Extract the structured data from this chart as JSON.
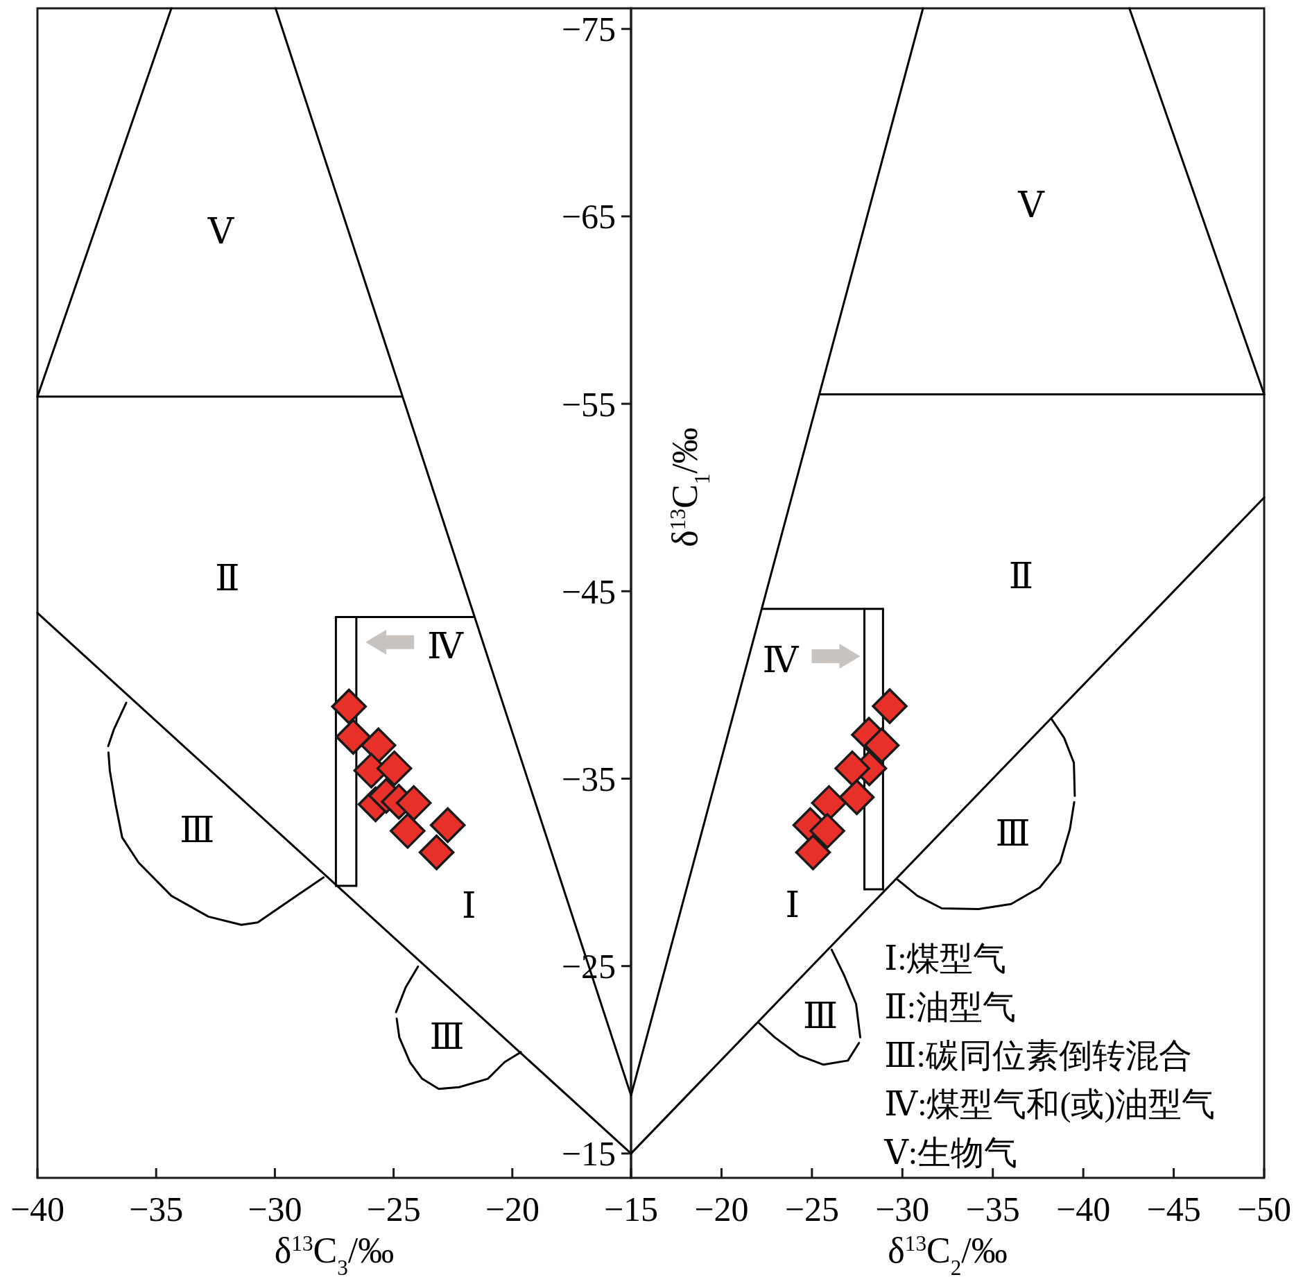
{
  "chart_data": [
    {
      "type": "scatter",
      "xlabel": "δ$^{13}$C$_{3}$/‰",
      "xlim": [
        -40,
        -15
      ],
      "xticks": [
        {
          "value": -40,
          "label": "−40"
        },
        {
          "value": -35,
          "label": "−35"
        },
        {
          "value": -30,
          "label": "−30"
        },
        {
          "value": -25,
          "label": "−25"
        },
        {
          "value": -20,
          "label": "−20"
        },
        {
          "value": -15,
          "label": null
        }
      ],
      "ylim": [
        -13.7,
        -76.1
      ],
      "yticks": [
        {
          "value": -75,
          "label": "−75"
        },
        {
          "value": -65,
          "label": "−65"
        },
        {
          "value": -55,
          "label": "−55"
        },
        {
          "value": -45,
          "label": "−45"
        },
        {
          "value": -35,
          "label": "−35"
        },
        {
          "value": -25,
          "label": "−25"
        },
        {
          "value": -15,
          "label": "−15"
        }
      ],
      "series": [
        {
          "type": "line",
          "color": "#000000",
          "x": [
            -34.36,
            -40
          ],
          "values": [
            -76.1,
            -55.38
          ]
        },
        {
          "type": "line",
          "color": "#000000",
          "x": [
            -29.97,
            -15
          ],
          "values": [
            -76.1,
            -18.1
          ]
        },
        {
          "type": "line",
          "color": "#000000",
          "x": [
            -40,
            -24.66
          ],
          "values": [
            -55.38,
            -55.38
          ]
        },
        {
          "type": "line",
          "color": "#000000",
          "x": [
            -40,
            -15
          ],
          "values": [
            -43.84,
            -15
          ]
        },
        {
          "type": "line",
          "color": "#000000",
          "x": [
            -27.43,
            -21.65
          ],
          "values": [
            -43.62,
            -43.62
          ]
        },
        {
          "type": "line",
          "color": "#000000",
          "x": [
            -27.43,
            -26.57
          ],
          "values": [
            -29.28,
            -29.28
          ]
        },
        {
          "type": "line",
          "color": "#000000",
          "x": [
            -27.43,
            -27.43
          ],
          "values": [
            -43.62,
            -29.28
          ]
        },
        {
          "type": "line",
          "color": "#000000",
          "x": [
            -26.57,
            -26.57
          ],
          "values": [
            -43.62,
            -29.28
          ]
        },
        {
          "type": "line",
          "color": "#000000",
          "x": [
            -36.26,
            -36.78,
            -37.02
          ],
          "values": [
            -39.05,
            -37.63,
            -36.74
          ]
        },
        {
          "type": "line",
          "color": "#000000",
          "x": [
            -37.01,
            -36.95,
            -36.71,
            -36.43,
            -35.74,
            -34.36,
            -32.8,
            -31.41,
            -30.72,
            -29.34,
            -27.95
          ],
          "values": [
            -36.4,
            -35.41,
            -33.63,
            -31.86,
            -30.52,
            -28.75,
            -27.64,
            -27.2,
            -27.33,
            -28.53,
            -29.73
          ]
        },
        {
          "type": "line",
          "color": "#000000",
          "x": [
            -23.97,
            -24.49,
            -24.9
          ],
          "values": [
            -24.98,
            -23.87,
            -22.54
          ]
        },
        {
          "type": "line",
          "color": "#000000",
          "x": [
            -24.87,
            -24.76,
            -24.31,
            -23.8,
            -23.1,
            -22.24,
            -21.03,
            -20.33,
            -19.64
          ],
          "values": [
            -22.2,
            -21.2,
            -19.87,
            -18.99,
            -18.45,
            -18.54,
            -18.99,
            -19.87,
            -20.41
          ]
        },
        {
          "type": "scatter",
          "marker": "diamond",
          "color": "#e8302a",
          "x": [
            -26.88,
            -26.7,
            -25.64,
            -25.94,
            -24.97,
            -25.76,
            -25.31,
            -24.78,
            -24.15,
            -24.41,
            -22.72,
            -23.19
          ],
          "values": [
            -38.85,
            -37.23,
            -36.78,
            -35.43,
            -35.55,
            -33.63,
            -34.08,
            -33.77,
            -33.7,
            -32.21,
            -32.52,
            -31.07
          ]
        }
      ],
      "annotations": [
        "Ⅴ",
        "Ⅱ",
        "Ⅳ",
        "Ⅰ",
        "Ⅲ",
        "Ⅲ"
      ]
    },
    {
      "type": "scatter",
      "xlabel": "δ$^{13}$C$_{2}$/‰",
      "ylabel": "δ$^{13}$C$_{1}$/‰",
      "tick_labels": "x",
      "xlim": [
        -15,
        -50
      ],
      "xticks": [
        {
          "value": -15,
          "label": "−15"
        },
        {
          "value": -20,
          "label": "−20"
        },
        {
          "value": -25,
          "label": "−25"
        },
        {
          "value": -30,
          "label": "−30"
        },
        {
          "value": -35,
          "label": "−35"
        },
        {
          "value": -40,
          "label": "−40"
        },
        {
          "value": -45,
          "label": "−45"
        },
        {
          "value": -50,
          "label": "−50"
        }
      ],
      "ylim": [
        -13.7,
        -76.1
      ],
      "series": [
        {
          "type": "line",
          "color": "#000000",
          "x": [
            -31.14,
            -15
          ],
          "values": [
            -76.1,
            -18.1
          ]
        },
        {
          "type": "line",
          "color": "#000000",
          "x": [
            -42.55,
            -50
          ],
          "values": [
            -76.1,
            -55.5
          ]
        },
        {
          "type": "line",
          "color": "#000000",
          "x": [
            -25.41,
            -50
          ],
          "values": [
            -55.5,
            -55.5
          ]
        },
        {
          "type": "line",
          "color": "#000000",
          "x": [
            -15,
            -50
          ],
          "values": [
            -15,
            -50
          ]
        },
        {
          "type": "line",
          "color": "#000000",
          "x": [
            -22.26,
            -28.93
          ],
          "values": [
            -44.06,
            -44.06
          ]
        },
        {
          "type": "line",
          "color": "#000000",
          "x": [
            -27.9,
            -28.93
          ],
          "values": [
            -29.1,
            -29.1
          ]
        },
        {
          "type": "line",
          "color": "#000000",
          "x": [
            -27.9,
            -27.9
          ],
          "values": [
            -44.06,
            -29.1
          ]
        },
        {
          "type": "line",
          "color": "#000000",
          "x": [
            -28.93,
            -28.93
          ],
          "values": [
            -44.06,
            -29.1
          ]
        },
        {
          "type": "line",
          "color": "#000000",
          "x": [
            -38.26,
            -38.94,
            -39.48,
            -39.53
          ],
          "values": [
            -38.16,
            -37.18,
            -35.85,
            -34.08
          ]
        },
        {
          "type": "line",
          "color": "#000000",
          "x": [
            -39.5,
            -39.26,
            -38.72,
            -37.59,
            -36.01,
            -34.21,
            -32.18,
            -30.83,
            -29.7
          ],
          "values": [
            -33.75,
            -32.3,
            -30.53,
            -29.19,
            -28.31,
            -28.04,
            -28.08,
            -28.75,
            -29.64
          ]
        },
        {
          "type": "line",
          "color": "#000000",
          "x": [
            -26.09,
            -26.77,
            -27.44,
            -27.67
          ],
          "values": [
            -25.87,
            -24.53,
            -22.98,
            -21.2
          ]
        },
        {
          "type": "line",
          "color": "#000000",
          "x": [
            -27.6,
            -26.99,
            -25.64,
            -24.29,
            -22.94,
            -22.03
          ],
          "values": [
            -20.9,
            -19.96,
            -19.74,
            -20.23,
            -21.2,
            -22.0
          ]
        },
        {
          "type": "scatter",
          "marker": "diamond",
          "color": "#e8302a",
          "x": [
            -29.3,
            -28.15,
            -28.86,
            -28.17,
            -27.23,
            -27.48,
            -25.94,
            -24.91,
            -25.85,
            -25.06
          ],
          "values": [
            -38.87,
            -37.34,
            -36.78,
            -35.55,
            -35.55,
            -34.01,
            -33.7,
            -32.52,
            -32.21,
            -31.07
          ]
        }
      ],
      "annotations": [
        "Ⅴ",
        "Ⅱ",
        "Ⅳ",
        "Ⅰ",
        "Ⅲ",
        "Ⅲ",
        "Ⅰ:煤型气",
        "Ⅱ:油型气",
        "Ⅲ:碳同位素倒转混合",
        "Ⅳ:煤型气和(或)油型气",
        "Ⅴ:生物气"
      ]
    }
  ]
}
